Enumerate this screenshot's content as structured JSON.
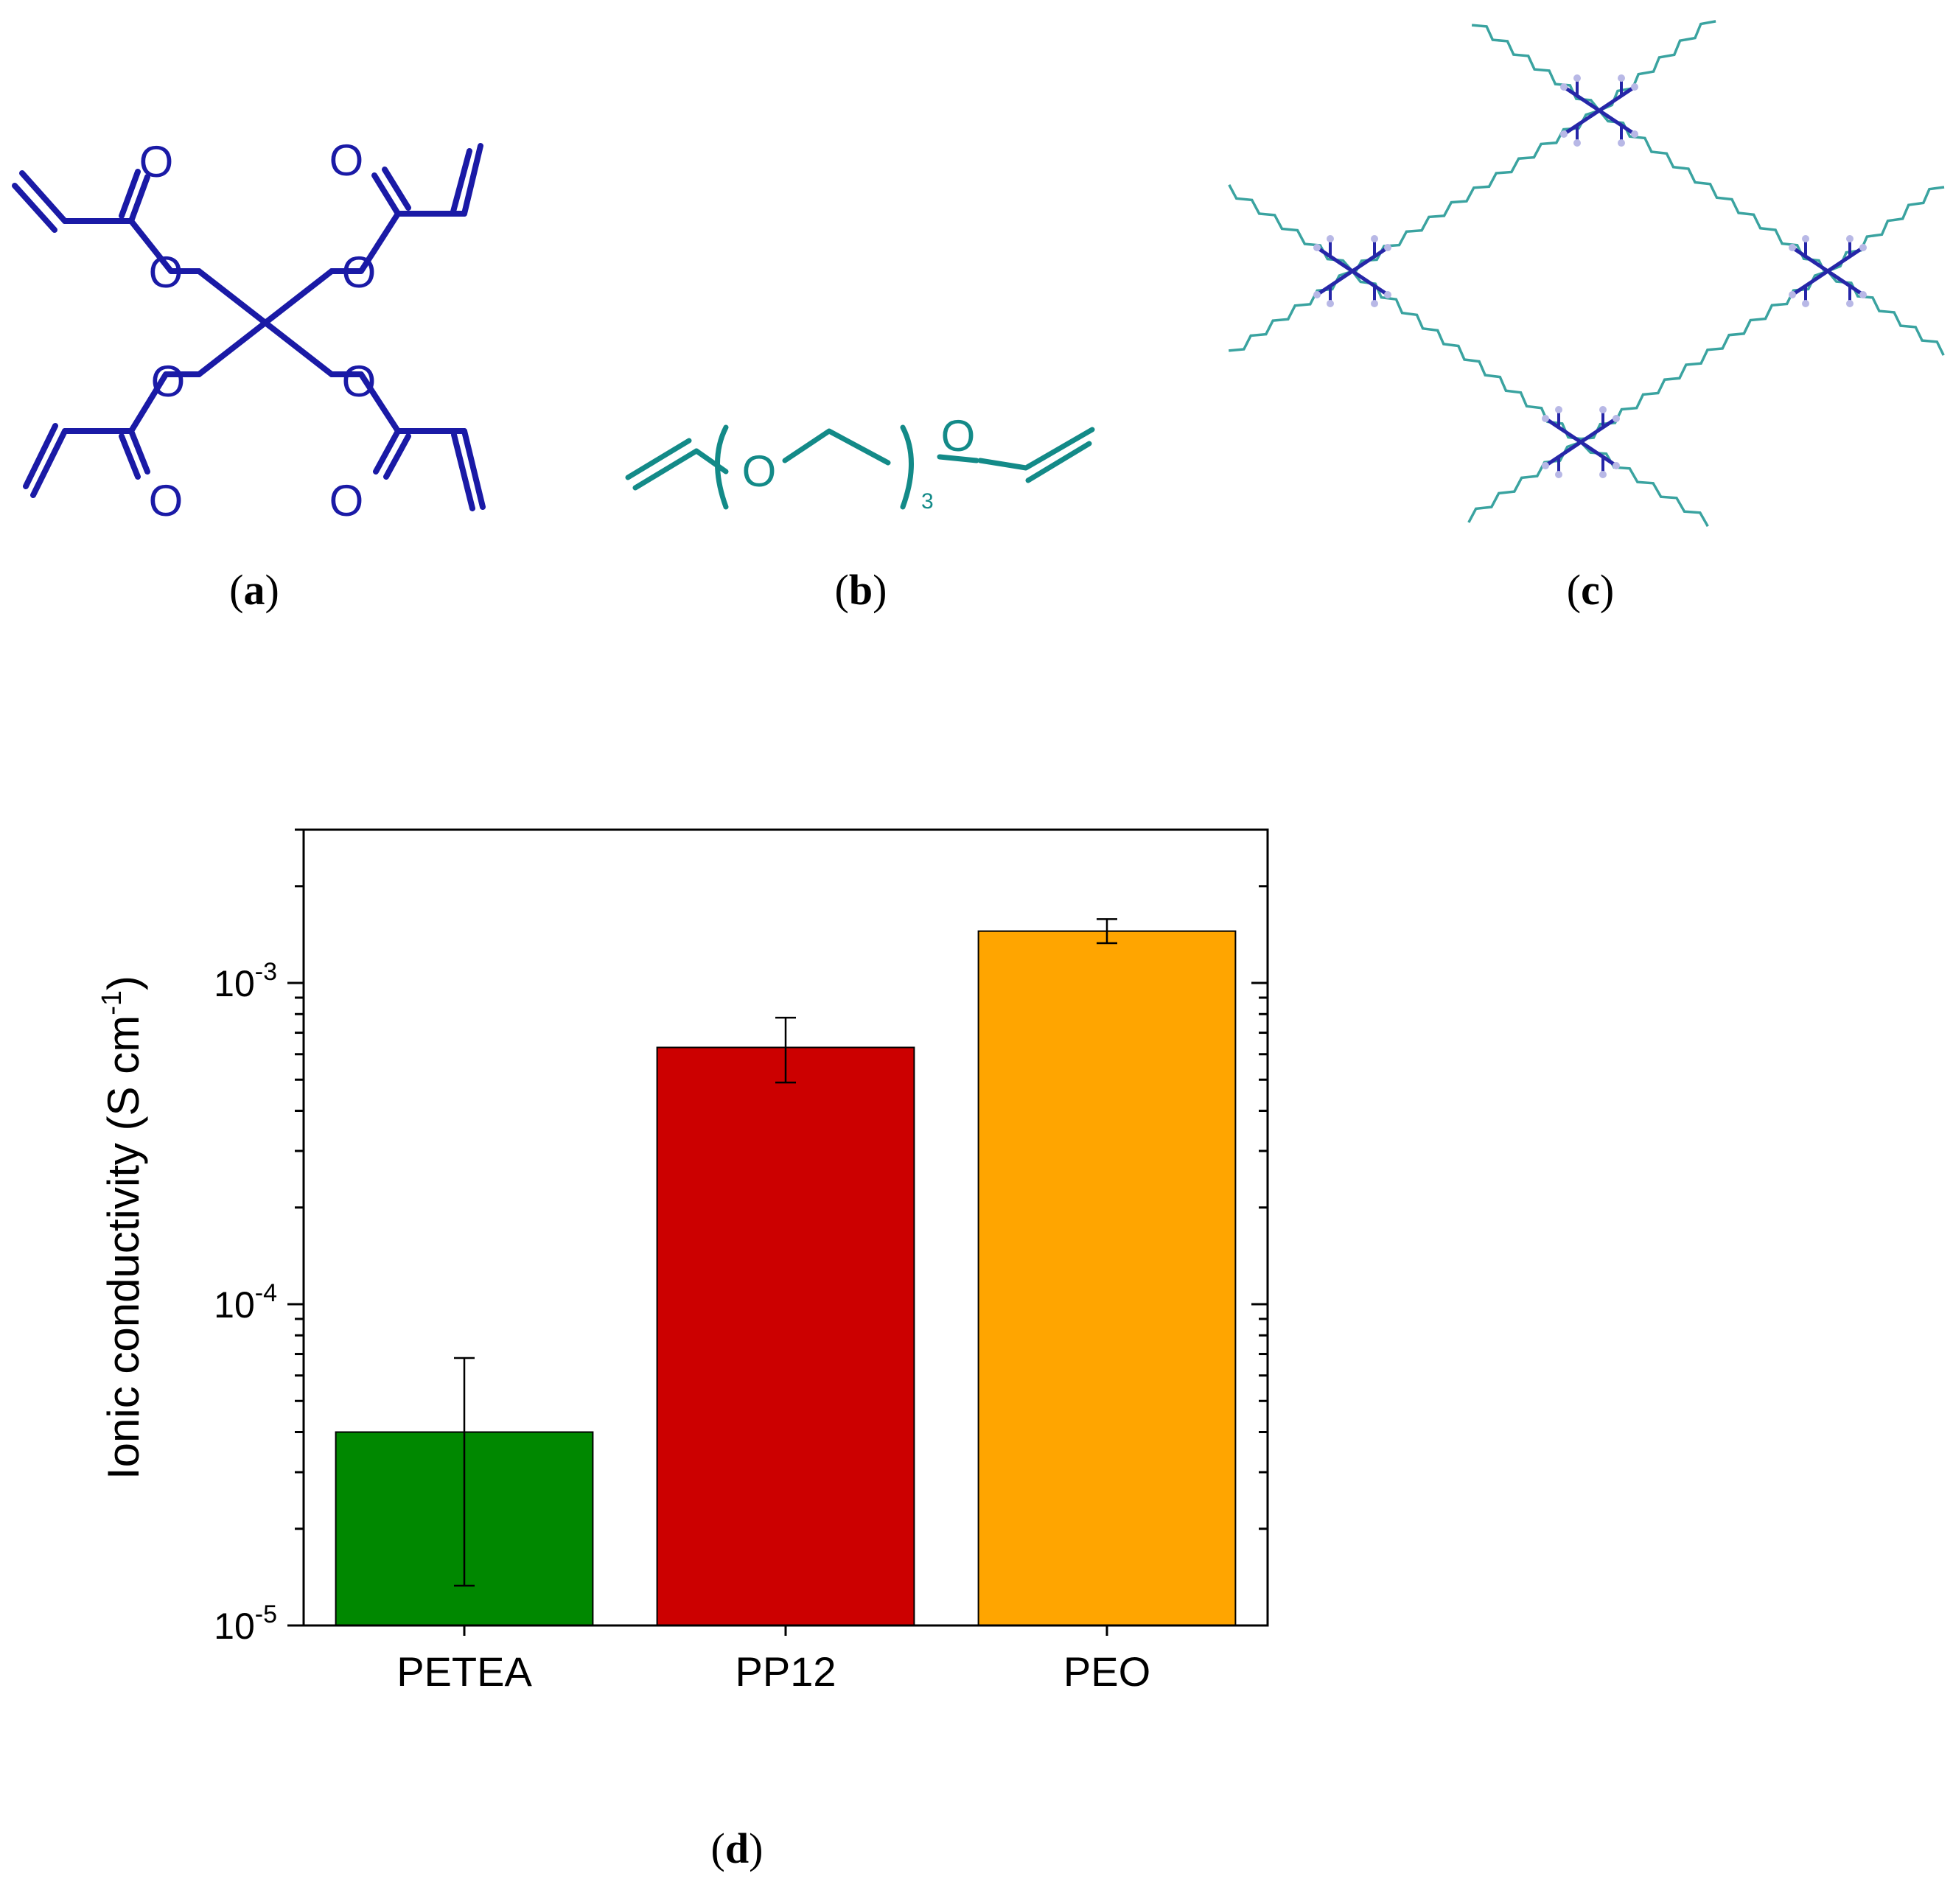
{
  "panels": {
    "a": {
      "label": "a",
      "atom_O": "O",
      "color": "#1a1aa6"
    },
    "b": {
      "label": "b",
      "atom_O": "O",
      "repeat": "3",
      "color": "#138a88"
    },
    "c": {
      "label": "c",
      "core_color": "#2626a8",
      "chain_color": "#3aa3a0"
    },
    "d": {
      "label": "d"
    }
  },
  "chart_data": {
    "type": "bar",
    "categories": [
      "PETEA",
      "PP12",
      "PEO"
    ],
    "values": [
      4e-05,
      0.00063,
      0.00145
    ],
    "error_low": [
      1.33e-05,
      0.00049,
      0.00133
    ],
    "error_high": [
      6.8e-05,
      0.00078,
      0.00158
    ],
    "colors": [
      "#008800",
      "#cc0000",
      "#ffa500"
    ],
    "ylabel": "Ionic conductivity (S cm",
    "ylabel_sup": "-1",
    "ylabel_close": ")",
    "yscale": "log",
    "ylim": [
      1e-05,
      0.003
    ],
    "yticks": [
      {
        "value": 1e-05,
        "base": "10",
        "exp": "-5"
      },
      {
        "value": 0.0001,
        "base": "10",
        "exp": "-4"
      },
      {
        "value": 0.001,
        "base": "10",
        "exp": "-3"
      }
    ]
  }
}
